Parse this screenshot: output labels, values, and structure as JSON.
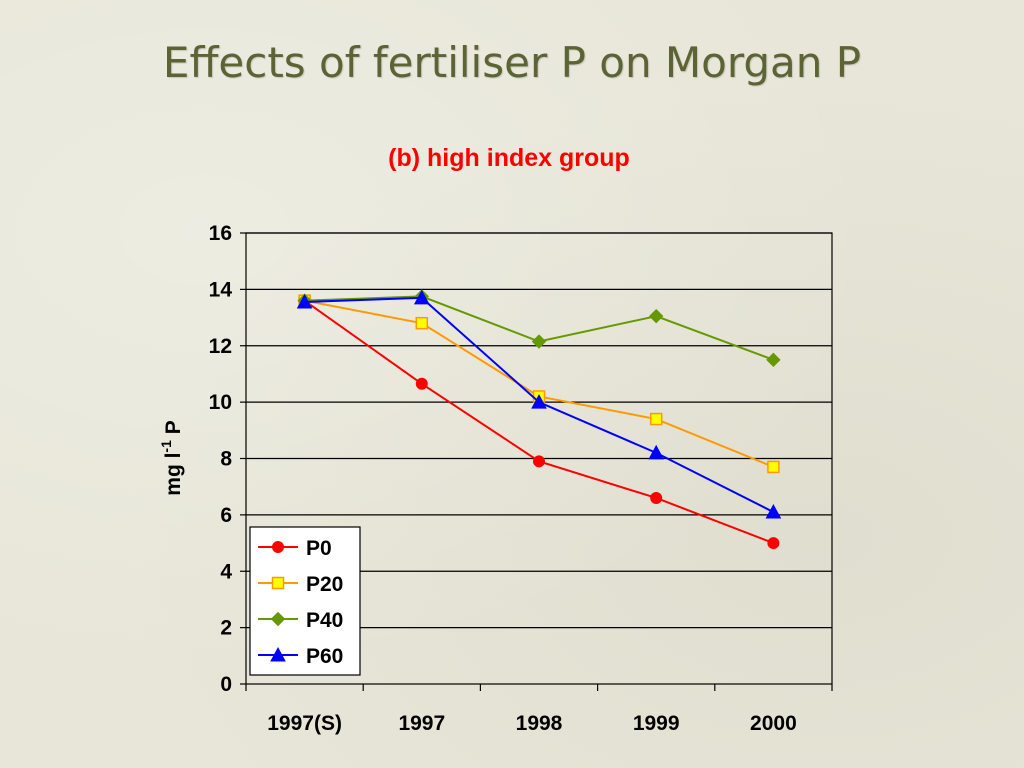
{
  "slide": {
    "title": "Effects of fertiliser P on Morgan P"
  },
  "chart_data": {
    "type": "line",
    "title": "(b) high index group",
    "xlabel": "",
    "ylabel": {
      "main": "mg l",
      "superscript": "-1",
      "suffix": " P"
    },
    "categories": [
      "1997(S)",
      "1997",
      "1998",
      "1999",
      "2000"
    ],
    "ylim": [
      0,
      16
    ],
    "yticks": [
      0,
      2,
      4,
      6,
      8,
      10,
      12,
      14,
      16
    ],
    "grid": true,
    "legend_position": "bottom-left",
    "series": [
      {
        "name": "P0",
        "color": "#ff0000",
        "marker": "circle",
        "values": [
          13.6,
          10.65,
          7.9,
          6.6,
          5.0
        ]
      },
      {
        "name": "P20",
        "color": "#ff9900",
        "marker": "square",
        "values": [
          13.6,
          12.8,
          10.2,
          9.4,
          7.7
        ]
      },
      {
        "name": "P40",
        "color": "#669900",
        "marker": "diamond",
        "values": [
          13.6,
          13.75,
          12.15,
          13.05,
          11.5
        ]
      },
      {
        "name": "P60",
        "color": "#0000ff",
        "marker": "triangle",
        "values": [
          13.55,
          13.7,
          10.0,
          8.2,
          6.1
        ]
      }
    ]
  }
}
